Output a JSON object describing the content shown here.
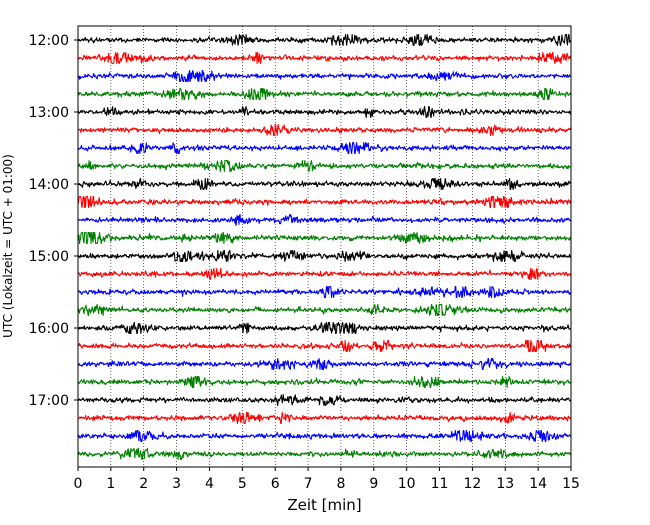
{
  "chart_data": {
    "type": "line",
    "title": "",
    "xlabel": "Zeit  [min]",
    "ylabel": "UTC (Lokalzeit = UTC + 01:00)",
    "xlim": [
      0,
      15
    ],
    "x_ticks": [
      "0",
      "1",
      "2",
      "3",
      "4",
      "5",
      "6",
      "7",
      "8",
      "9",
      "10",
      "11",
      "12",
      "13",
      "14",
      "15"
    ],
    "y_ticks": [
      "12:00",
      "13:00",
      "14:00",
      "15:00",
      "16:00",
      "17:00"
    ],
    "grid": "vertical dotted",
    "legend": "none",
    "trace_colors": [
      "#000000",
      "#ff0000",
      "#0000ff",
      "#008000"
    ],
    "series": [
      {
        "start": "12:00",
        "color": "#000000"
      },
      {
        "start": "12:15",
        "color": "#ff0000"
      },
      {
        "start": "12:30",
        "color": "#0000ff"
      },
      {
        "start": "12:45",
        "color": "#008000"
      },
      {
        "start": "13:00",
        "color": "#000000"
      },
      {
        "start": "13:15",
        "color": "#ff0000"
      },
      {
        "start": "13:30",
        "color": "#0000ff"
      },
      {
        "start": "13:45",
        "color": "#008000"
      },
      {
        "start": "14:00",
        "color": "#000000"
      },
      {
        "start": "14:15",
        "color": "#ff0000"
      },
      {
        "start": "14:30",
        "color": "#0000ff"
      },
      {
        "start": "14:45",
        "color": "#008000"
      },
      {
        "start": "15:00",
        "color": "#000000"
      },
      {
        "start": "15:15",
        "color": "#ff0000"
      },
      {
        "start": "15:30",
        "color": "#0000ff"
      },
      {
        "start": "15:45",
        "color": "#008000"
      },
      {
        "start": "16:00",
        "color": "#000000"
      },
      {
        "start": "16:15",
        "color": "#ff0000"
      },
      {
        "start": "16:30",
        "color": "#0000ff"
      },
      {
        "start": "16:45",
        "color": "#008000"
      },
      {
        "start": "17:00",
        "color": "#000000"
      },
      {
        "start": "17:15",
        "color": "#ff0000"
      },
      {
        "start": "17:30",
        "color": "#0000ff"
      },
      {
        "start": "17:45",
        "color": "#008000"
      }
    ]
  }
}
